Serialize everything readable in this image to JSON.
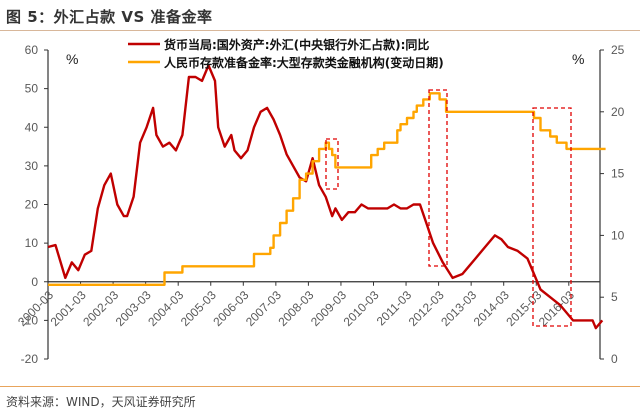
{
  "header": {
    "title": "图 5：外汇占款 VS 准备金率"
  },
  "footer": {
    "source": "资料来源：WIND，天风证券研究所"
  },
  "colors": {
    "fx_series": "#c00000",
    "rrr_series": "#ffa500",
    "highlight_box": "#e00000",
    "axis": "#333333"
  },
  "axes": {
    "left_unit": "%",
    "right_unit": "%"
  },
  "legend": [
    {
      "label": "货币当局:国外资产:外汇(中央银行外汇占款):同比",
      "color": "#c00000"
    },
    {
      "label": "人民币存款准备金率:大型存款类金融机构(变动日期)",
      "color": "#ffa500"
    }
  ],
  "chart_data": {
    "type": "line",
    "title": "外汇占款 VS 准备金率",
    "xlabel": "",
    "ylabel_left": "%",
    "ylabel_right": "%",
    "ylim_left": [
      -20,
      60
    ],
    "ylim_right": [
      0,
      25
    ],
    "yticks_left": [
      -20,
      -10,
      0,
      10,
      20,
      30,
      40,
      50,
      60
    ],
    "yticks_right": [
      0,
      5,
      10,
      15,
      20,
      25
    ],
    "categories": [
      "2000-03",
      "2001-03",
      "2002-03",
      "2003-03",
      "2004-03",
      "2005-03",
      "2006-03",
      "2007-03",
      "2008-03",
      "2009-03",
      "2010-03",
      "2011-03",
      "2012-03",
      "2013-03",
      "2014-03",
      "2015-03",
      "2016-03"
    ],
    "legend_position": "top-center",
    "grid": false,
    "series": [
      {
        "name": "货币当局:国外资产:外汇(中央银行外汇占款):同比",
        "axis": "left",
        "x": [
          2000.17,
          2000.4,
          2000.7,
          2000.9,
          2001.1,
          2001.3,
          2001.5,
          2001.7,
          2001.9,
          2002.1,
          2002.3,
          2002.5,
          2002.6,
          2002.8,
          2003.0,
          2003.2,
          2003.4,
          2003.5,
          2003.7,
          2003.9,
          2004.1,
          2004.3,
          2004.5,
          2004.7,
          2004.9,
          2005.1,
          2005.3,
          2005.4,
          2005.6,
          2005.8,
          2005.9,
          2006.1,
          2006.3,
          2006.5,
          2006.7,
          2006.9,
          2007.1,
          2007.3,
          2007.5,
          2007.7,
          2007.9,
          2008.1,
          2008.3,
          2008.5,
          2008.7,
          2008.9,
          2009.0,
          2009.2,
          2009.4,
          2009.6,
          2009.8,
          2010.0,
          2010.2,
          2010.4,
          2010.6,
          2010.8,
          2011.0,
          2011.2,
          2011.4,
          2011.6,
          2011.8,
          2012.0,
          2012.3,
          2012.6,
          2012.9,
          2013.1,
          2013.3,
          2013.6,
          2013.9,
          2014.1,
          2014.3,
          2014.6,
          2014.9,
          2015.1,
          2015.3,
          2015.6,
          2015.9,
          2016.1,
          2016.3,
          2016.6,
          2016.9,
          2017.0,
          2017.2
        ],
        "values": [
          9,
          9.5,
          1,
          5,
          3,
          7,
          8,
          19,
          25,
          28,
          20,
          17,
          17,
          22,
          36,
          40,
          45,
          38,
          35,
          36,
          34,
          38,
          53,
          53,
          52,
          56,
          52,
          40,
          35,
          38,
          34,
          32,
          34,
          40,
          44,
          45,
          42,
          38,
          33,
          30,
          27,
          26,
          32,
          25,
          22,
          17,
          19,
          16,
          18,
          18,
          20,
          19,
          19,
          19,
          19,
          20,
          19,
          19,
          20,
          20,
          15,
          10,
          5,
          1,
          2,
          4,
          6,
          9,
          12,
          11,
          9,
          8,
          6,
          2,
          -2,
          -4,
          -6,
          -8,
          -10,
          -10,
          -10,
          -12,
          -10
        ]
      },
      {
        "name": "人民币存款准备金率:大型存款类金融机构(变动日期)",
        "axis": "right",
        "x": [
          2000.17,
          2003.75,
          2003.75,
          2004.3,
          2004.3,
          2006.5,
          2006.5,
          2007.0,
          2007.1,
          2007.3,
          2007.5,
          2007.7,
          2007.9,
          2008.1,
          2008.3,
          2008.5,
          2008.7,
          2008.8,
          2008.9,
          2009.0,
          2009.0,
          2010.0,
          2010.1,
          2010.3,
          2010.5,
          2010.9,
          2011.0,
          2011.2,
          2011.4,
          2011.5,
          2011.7,
          2011.9,
          2012.0,
          2012.2,
          2012.4,
          2015.0,
          2015.1,
          2015.3,
          2015.6,
          2015.8,
          2016.1,
          2016.3,
          2017.3
        ],
        "values": [
          6,
          6,
          7,
          7,
          7.5,
          7.5,
          8.5,
          9,
          10,
          11,
          12,
          13,
          14.5,
          15,
          16,
          17,
          17.5,
          17,
          16.5,
          16,
          15.5,
          15.5,
          16.5,
          17,
          17.5,
          18.5,
          19,
          19.5,
          20,
          20.5,
          21,
          21.5,
          21.5,
          21,
          20,
          20,
          19.5,
          18.5,
          18,
          17.5,
          17,
          17,
          17
        ]
      }
    ],
    "annotations": [
      {
        "type": "dashed-box",
        "x_range": [
          2008.7,
          2009.0
        ],
        "note": "highlight 2008 RRR cut"
      },
      {
        "type": "dashed-box",
        "x_range": [
          2011.8,
          2012.3
        ],
        "note": "highlight 2011-2012 RRR cuts"
      },
      {
        "type": "dashed-box",
        "x_range": [
          2015.0,
          2016.2
        ],
        "note": "highlight 2015-2016 RRR cuts"
      }
    ]
  }
}
